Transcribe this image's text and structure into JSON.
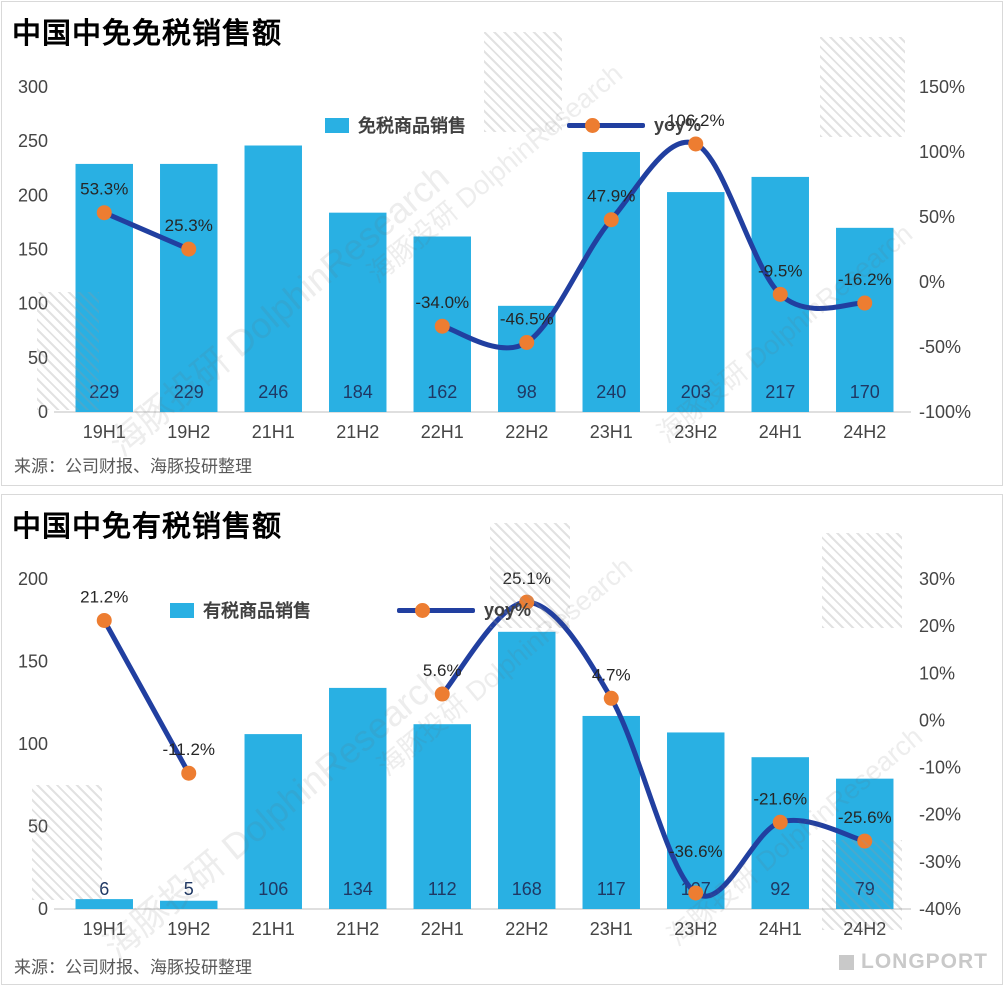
{
  "colors": {
    "bar": "#29b0e3",
    "line": "#213fa0",
    "marker": "#ed7d31",
    "bar_label": "#1f3864",
    "axis_label": "#454545",
    "yoy_label": "#262626"
  },
  "watermark": {
    "text": "海豚投研 DolphinResearch"
  },
  "logo_text": "LONGPORT",
  "panels": [
    {
      "title": "中国中免免税销售额",
      "source": "来源：公司财报、海豚投研整理",
      "legend": {
        "bar_label": "免税商品销售",
        "line_label": "yoy%"
      },
      "chart_data": {
        "type": "bar+line",
        "categories": [
          "19H1",
          "19H2",
          "21H1",
          "21H2",
          "22H1",
          "22H2",
          "23H1",
          "23H2",
          "24H1",
          "24H2"
        ],
        "series": [
          {
            "name": "免税商品销售",
            "type": "bar",
            "axis": "left",
            "values": [
              229,
              229,
              246,
              184,
              162,
              98,
              240,
              203,
              217,
              170
            ]
          },
          {
            "name": "yoy%",
            "type": "line",
            "axis": "right",
            "values": [
              53.3,
              25.3,
              null,
              null,
              -34.0,
              -46.5,
              47.9,
              106.2,
              -9.5,
              -16.2
            ],
            "point_labels": [
              "53.3%",
              "25.3%",
              "",
              "",
              "-34.0%",
              "-46.5%",
              "47.9%",
              "106.2%",
              "-9.5%",
              "-16.2%"
            ]
          }
        ],
        "left_axis": {
          "min": 0,
          "max": 300,
          "step": 50
        },
        "right_axis": {
          "min": -100,
          "max": 150,
          "step": 50,
          "suffix": "%"
        },
        "grid": false,
        "legend_position": "top"
      }
    },
    {
      "title": "中国中免有税销售额",
      "source": "来源：公司财报、海豚投研整理",
      "legend": {
        "bar_label": "有税商品销售",
        "line_label": "yoy%"
      },
      "chart_data": {
        "type": "bar+line",
        "categories": [
          "19H1",
          "19H2",
          "21H1",
          "21H2",
          "22H1",
          "22H2",
          "23H1",
          "23H2",
          "24H1",
          "24H2"
        ],
        "series": [
          {
            "name": "有税商品销售",
            "type": "bar",
            "axis": "left",
            "values": [
              6,
              5,
              106,
              134,
              112,
              168,
              117,
              107,
              92,
              79
            ]
          },
          {
            "name": "yoy%",
            "type": "line",
            "axis": "right",
            "values": [
              21.2,
              -11.2,
              null,
              null,
              5.6,
              25.1,
              4.7,
              -36.6,
              -21.6,
              -25.6
            ],
            "point_labels": [
              "21.2%",
              "-11.2%",
              "",
              "",
              "5.6%",
              "25.1%",
              "4.7%",
              "-36.6%",
              "-21.6%",
              "-25.6%"
            ]
          }
        ],
        "left_axis": {
          "min": 0,
          "max": 200,
          "step": 50
        },
        "right_axis": {
          "min": -40,
          "max": 30,
          "step": 10,
          "suffix": "%"
        },
        "grid": false,
        "legend_position": "top"
      }
    }
  ]
}
